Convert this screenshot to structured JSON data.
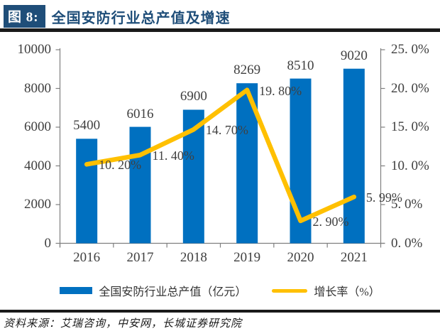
{
  "figure": {
    "badge_label": "图 8:",
    "title": "全国安防行业总产值及增速",
    "source": "资料来源：艾瑞咨询，中安网，长城证券研究院",
    "colors": {
      "badge_background": "#1F4E79",
      "title_text": "#1F4E79",
      "rule": "#1a1a1a"
    }
  },
  "chart_data": {
    "type": "bar",
    "subtype": "combo-bar-line-dual-axis",
    "title": "全国安防行业总产值及增速",
    "categories": [
      "2016",
      "2017",
      "2018",
      "2019",
      "2020",
      "2021"
    ],
    "series": [
      {
        "name": "全国安防行业总产值（亿元）",
        "type": "bar",
        "axis": "left",
        "color": "#0070C0",
        "values": [
          5400,
          6016,
          6900,
          8269,
          8510,
          9020
        ],
        "labels": [
          "5400",
          "6016",
          "6900",
          "8269",
          "8510",
          "9020"
        ]
      },
      {
        "name": "增长率（%）",
        "type": "line",
        "axis": "right",
        "color": "#FFC000",
        "values": [
          10.2,
          11.4,
          14.7,
          19.8,
          2.9,
          5.99
        ],
        "labels": [
          "10. 20%",
          "11. 40%",
          "14. 70%",
          "19. 80%",
          "2. 90%",
          "5. 99%"
        ]
      }
    ],
    "left_axis": {
      "min": 0,
      "max": 10000,
      "tick_labels": [
        "0",
        "2000",
        "4000",
        "6000",
        "8000",
        "10000"
      ]
    },
    "right_axis": {
      "min": 0,
      "max": 25,
      "tick_labels": [
        "0. 0%",
        "5. 0%",
        "10. 0%",
        "15. 0%",
        "20. 0%",
        "25. 0%"
      ]
    },
    "axis_color": "#7F7F7F",
    "label_color": "#404040",
    "grid": false,
    "legend_position": "bottom"
  }
}
